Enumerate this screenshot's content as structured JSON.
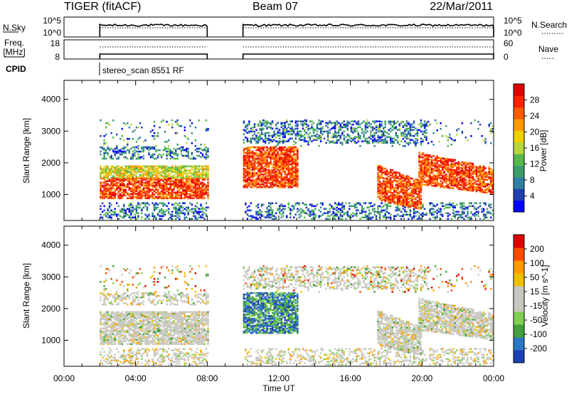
{
  "header": {
    "title": "TIGER (fitACF)",
    "beam": "Beam 07",
    "date": "22/Mar/2011"
  },
  "panels": {
    "nsky": {
      "label": "N.Sky",
      "left_ticks": [
        "10^5",
        "10^0"
      ],
      "right_ticks": [
        "10^5",
        "10^0"
      ],
      "right_label": "N.Search"
    },
    "freq": {
      "label_line1": "Freq.",
      "label_line2": "[MHz]",
      "left_ticks": [
        "18",
        "8"
      ],
      "right_ticks": [
        "60",
        "0"
      ],
      "right_label": "Nave"
    },
    "cpid": {
      "label": "CPID",
      "text": "stereo_scan 8551 RF"
    }
  },
  "chart_data": [
    {
      "type": "heatmap",
      "name": "power",
      "ylabel": "Slant Range [km]",
      "yticks": [
        "1000",
        "2000",
        "3000",
        "4000"
      ],
      "ylim_km": [
        180,
        4600
      ],
      "xlim_hours": [
        0,
        24
      ],
      "colorbar": {
        "label": "Power [dB]",
        "ticks": [
          "4",
          "8",
          "12",
          "16",
          "20",
          "24",
          "28"
        ],
        "colors": [
          "#0000ff",
          "#1f3fb0",
          "#2e7fa0",
          "#3a9f6a",
          "#55b848",
          "#b7d63b",
          "#f0d000",
          "#ff9a00",
          "#ff5a00",
          "#ff2000",
          "#e00000"
        ]
      },
      "features": [
        {
          "t0": 2.0,
          "t1": 8.0,
          "r0": 850,
          "r1": 1500,
          "level": "high"
        },
        {
          "t0": 2.0,
          "t1": 8.0,
          "r0": 1500,
          "r1": 1900,
          "level": "mid"
        },
        {
          "t0": 2.0,
          "t1": 8.0,
          "r0": 2100,
          "r1": 2500,
          "level": "low"
        },
        {
          "t0": 10.0,
          "t1": 13.0,
          "r0": 1200,
          "r1": 2500,
          "level": "high"
        },
        {
          "t0": 10.0,
          "t1": 20.3,
          "r0": 2600,
          "r1": 3300,
          "level": "low"
        },
        {
          "t0": 17.5,
          "t1": 20.0,
          "r0": 500,
          "r1": 1400,
          "level": "high"
        },
        {
          "t0": 19.8,
          "t1": 24.0,
          "r0": 1000,
          "r1": 1800,
          "level": "high"
        }
      ]
    },
    {
      "type": "heatmap",
      "name": "velocity",
      "ylabel": "Slant Range [km]",
      "yticks": [
        "1000",
        "2000",
        "3000",
        "4000"
      ],
      "ylim_km": [
        180,
        4600
      ],
      "xlim_hours": [
        0,
        24
      ],
      "xticks": [
        "00:00",
        "04:00",
        "08:00",
        "12:00",
        "16:00",
        "20:00",
        "00:00"
      ],
      "xlabel": "Time UT",
      "colorbar": {
        "label": "Velocity [m s^-1]",
        "ticks": [
          "200",
          "100",
          "50",
          "15",
          "-15",
          "-50",
          "-100",
          "-200"
        ],
        "colors": [
          "#1b3fb5",
          "#2a78c8",
          "#43a03a",
          "#7fd050",
          "#c8c8c0",
          "#c8c8c0",
          "#f0c000",
          "#ff9a00",
          "#ff4a00",
          "#e00000"
        ]
      }
    }
  ]
}
